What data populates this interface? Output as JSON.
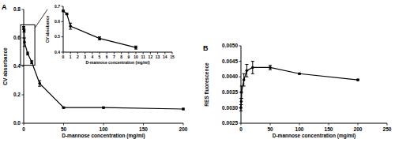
{
  "chart_data": [
    {
      "type": "line",
      "title": "A",
      "x_label": "D-mannose concentration (mg/ml)",
      "y_label": "CV absorbance",
      "x": [
        0,
        0.5,
        1,
        5,
        10,
        20,
        50,
        100,
        200
      ],
      "values": [
        0.67,
        0.65,
        0.57,
        0.49,
        0.43,
        0.28,
        0.11,
        0.11,
        0.1
      ],
      "errors": [
        0.01,
        0.01,
        0.03,
        0.01,
        0.01,
        0.02,
        0.005,
        0.005,
        0.005
      ],
      "color": "#000000",
      "marker": "circle",
      "line_style": "solid",
      "grid": false,
      "xlim": [
        0,
        200
      ],
      "xticks": [
        0,
        50,
        100,
        150,
        200
      ],
      "ylim": [
        0,
        0.8
      ],
      "yticks": [
        {
          "value": 0,
          "label": "0.0"
        },
        0.2,
        0.4,
        0.6,
        0.8
      ]
    },
    {
      "type": "line",
      "y_label": "CV absobance",
      "x_label": "D-mannose concentration (mg/ml)",
      "x": [
        0,
        0.5,
        1,
        5,
        10
      ],
      "values": [
        0.67,
        0.65,
        0.57,
        0.49,
        0.43
      ],
      "errors": [
        0.005,
        0.005,
        0.02,
        0.01,
        0.01
      ],
      "color": "#000000",
      "marker": "circle",
      "line_style": "solid",
      "grid": false,
      "xlim": [
        0,
        15
      ],
      "xticks": [
        0,
        1,
        2,
        3,
        4,
        5,
        6,
        7,
        8,
        9,
        10,
        11,
        12,
        13,
        14,
        15
      ],
      "ylim": [
        0.4,
        0.7
      ],
      "yticks": [
        0.4,
        0.5,
        0.6,
        0.7
      ]
    },
    {
      "type": "line",
      "title": "B",
      "x_label": "D-mannose concentration (mg/ml)",
      "y_label": "RES fluorescence",
      "x": [
        0,
        0.5,
        1,
        5,
        10,
        20,
        50,
        100,
        200
      ],
      "values": [
        0.003,
        0.0032,
        0.0035,
        0.0039,
        0.0042,
        0.0043,
        0.0043,
        0.0041,
        0.0039
      ],
      "errors": [
        0.0001,
        0.0001,
        0.0002,
        0.0002,
        0.0002,
        0.0002,
        7e-05,
        2e-05,
        2e-05
      ],
      "color": "#000000",
      "marker": "circle",
      "line_style": "solid",
      "grid": false,
      "xlim": [
        0,
        250
      ],
      "xticks": [
        0,
        50,
        100,
        150,
        200,
        250
      ],
      "ylim": [
        0.0025,
        0.005
      ],
      "yticks": [
        0.0025,
        {
          "value": 0.003,
          "label": "0.0030"
        },
        0.0035,
        {
          "value": 0.004,
          "label": "0.0040"
        },
        0.0045,
        {
          "value": 0.005,
          "label": "0.0050"
        }
      ]
    }
  ]
}
